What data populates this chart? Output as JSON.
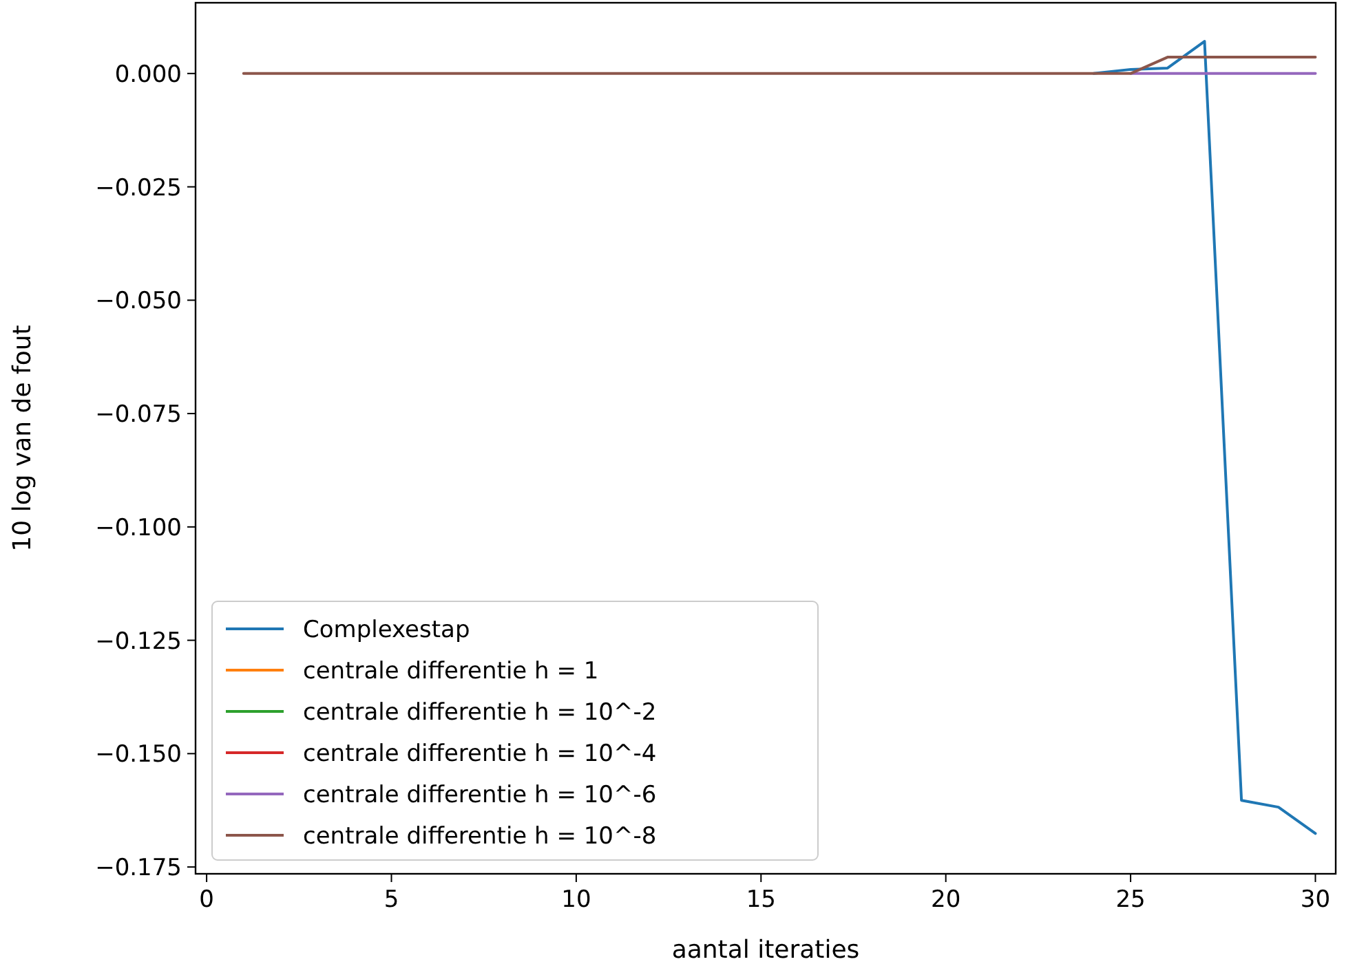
{
  "chart_data": {
    "type": "line",
    "xlabel": "aantal iteraties",
    "ylabel": "10 log van de fout",
    "x": [
      1,
      2,
      3,
      4,
      5,
      6,
      7,
      8,
      9,
      10,
      11,
      12,
      13,
      14,
      15,
      16,
      17,
      18,
      19,
      20,
      21,
      22,
      23,
      24,
      25,
      26,
      27,
      28,
      29,
      30
    ],
    "series": [
      {
        "name": "Complexestap",
        "color": "#1f77b4",
        "values": [
          null,
          null,
          null,
          null,
          null,
          null,
          null,
          null,
          null,
          null,
          null,
          null,
          null,
          null,
          null,
          null,
          null,
          null,
          null,
          null,
          null,
          null,
          null,
          0,
          0.0009,
          0.0012,
          0.0071,
          -0.1603,
          -0.1618,
          -0.1676
        ]
      },
      {
        "name": "centrale differentie h = 1",
        "color": "#ff7f0e",
        "values": [
          null,
          null,
          null,
          null,
          null,
          null,
          null,
          null,
          null,
          null,
          null,
          null,
          null,
          null,
          null,
          null,
          null,
          null,
          null,
          null,
          null,
          null,
          null,
          null,
          null,
          null,
          null,
          null,
          null,
          null
        ]
      },
      {
        "name": "centrale differentie h = 10^-2",
        "color": "#2ca02c",
        "values": [
          null,
          null,
          null,
          null,
          null,
          null,
          null,
          null,
          null,
          null,
          null,
          null,
          null,
          null,
          null,
          null,
          null,
          null,
          null,
          null,
          null,
          null,
          null,
          null,
          null,
          null,
          null,
          null,
          null,
          null
        ]
      },
      {
        "name": "centrale differentie h = 10^-4",
        "color": "#d62728",
        "values": [
          null,
          null,
          null,
          null,
          null,
          null,
          null,
          null,
          null,
          null,
          null,
          null,
          null,
          null,
          null,
          null,
          null,
          null,
          null,
          null,
          null,
          null,
          null,
          null,
          null,
          null,
          null,
          null,
          null,
          null
        ]
      },
      {
        "name": "centrale differentie h = 10^-6",
        "color": "#9467bd",
        "values": [
          null,
          null,
          null,
          null,
          null,
          null,
          null,
          null,
          null,
          null,
          null,
          null,
          null,
          null,
          null,
          null,
          null,
          null,
          null,
          null,
          null,
          null,
          null,
          null,
          0,
          0,
          0,
          0,
          0,
          0
        ]
      },
      {
        "name": "centrale differentie h = 10^-8",
        "color": "#8c564b",
        "values": [
          0,
          0,
          0,
          0,
          0,
          0,
          0,
          0,
          0,
          0,
          0,
          0,
          0,
          0,
          0,
          0,
          0,
          0,
          0,
          0,
          0,
          0,
          0,
          0,
          0,
          0.0036,
          0.0036,
          0.0036,
          0.0036,
          0.0036
        ]
      }
    ],
    "xlim": [
      -0.3,
      30.55
    ],
    "xticks": [
      0,
      5,
      10,
      15,
      20,
      25,
      30
    ],
    "ylim": [
      -0.1765,
      0.0156
    ],
    "yticks": [
      {
        "value": 0,
        "label": "0.000"
      },
      {
        "value": -0.025,
        "label": "−0.025"
      },
      {
        "value": -0.05,
        "label": "−0.050"
      },
      {
        "value": -0.075,
        "label": "−0.075"
      },
      {
        "value": -0.1,
        "label": "−0.100"
      },
      {
        "value": -0.125,
        "label": "−0.125"
      },
      {
        "value": -0.15,
        "label": "−0.150"
      },
      {
        "value": -0.175,
        "label": "−0.175"
      }
    ],
    "legend": "bottom left",
    "grid": false,
    "marker": "none",
    "line_style": "solid"
  }
}
